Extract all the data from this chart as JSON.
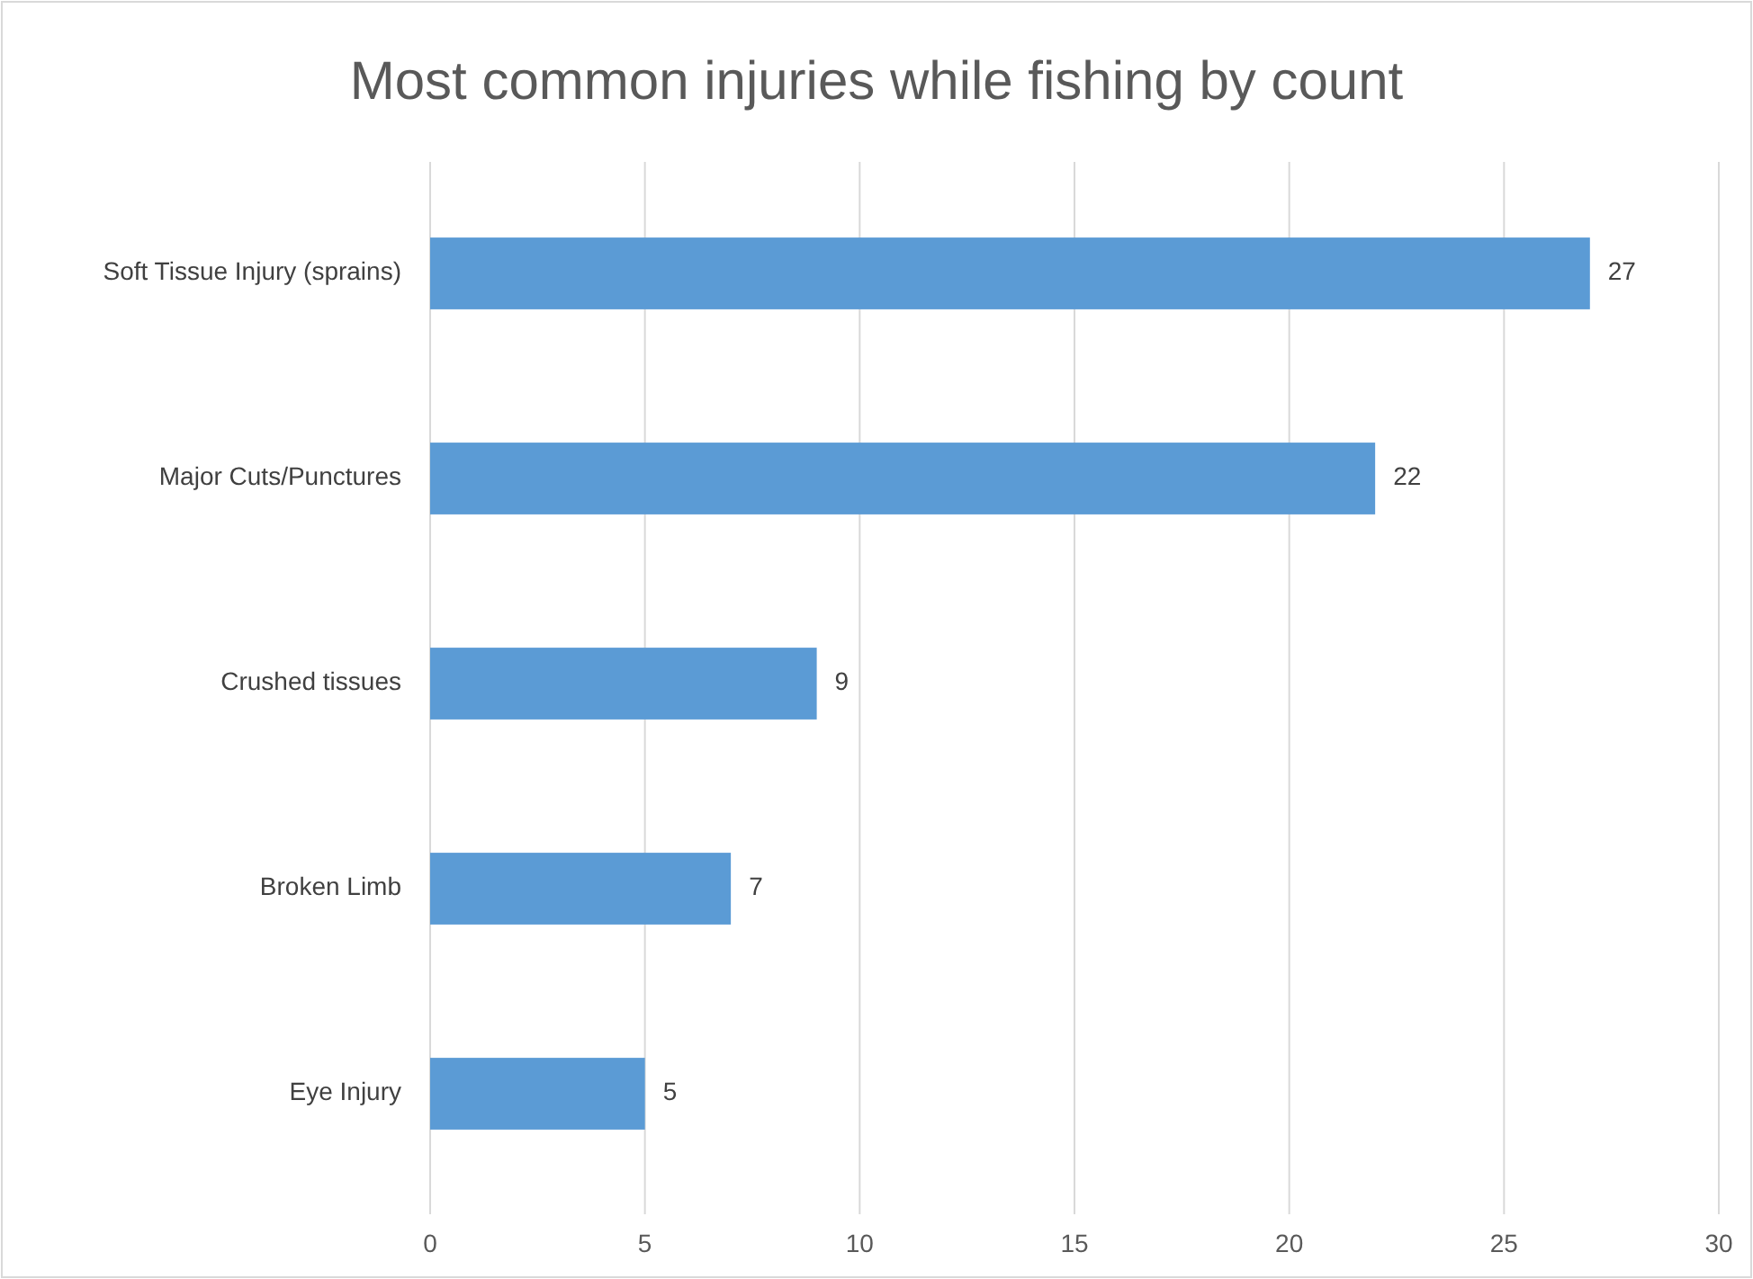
{
  "chart_data": {
    "type": "bar",
    "orientation": "horizontal",
    "title": "Most common injuries while fishing by count",
    "categories": [
      "Soft Tissue Injury (sprains)",
      "Major Cuts/Punctures",
      "Crushed tissues",
      "Broken Limb",
      "Eye Injury"
    ],
    "values": [
      27,
      22,
      9,
      7,
      5
    ],
    "color": "#5b9bd5",
    "xlim": [
      0,
      30
    ],
    "xticks": [
      0,
      5,
      10,
      15,
      20,
      25,
      30
    ],
    "grid": "x",
    "data_labels": true
  }
}
